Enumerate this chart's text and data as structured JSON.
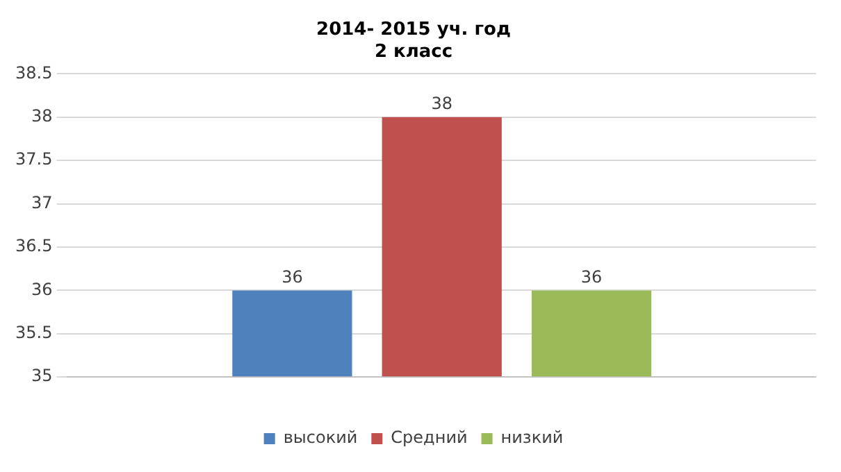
{
  "chart_data": {
    "type": "bar",
    "title": "2014- 2015 уч. год\n2 класс",
    "categories": [
      null
    ],
    "series": [
      {
        "name": "высокий",
        "color": "#4f81bd",
        "values": [
          36
        ]
      },
      {
        "name": "Средний",
        "color": "#c0504d",
        "values": [
          38
        ]
      },
      {
        "name": "низкий",
        "color": "#9bbb59",
        "values": [
          36
        ]
      }
    ],
    "ylim": [
      35,
      38.5
    ],
    "yticks": [
      35,
      35.5,
      36,
      36.5,
      37,
      37.5,
      38,
      38.5
    ],
    "grid": "y",
    "legend": "bottom",
    "data_labels": true
  }
}
